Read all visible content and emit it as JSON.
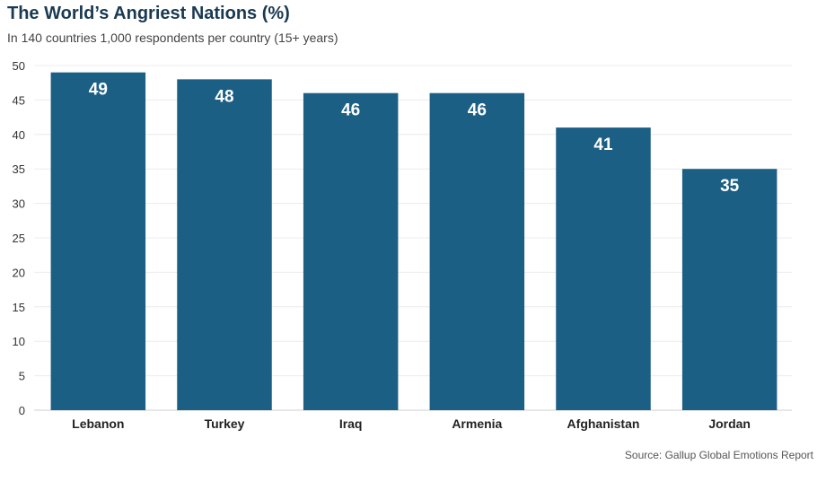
{
  "chart_data": {
    "type": "bar",
    "title": "The World’s Angriest Nations (%)",
    "subtitle": "In 140 countries 1,000 respondents per country (15+ years)",
    "categories": [
      "Lebanon",
      "Turkey",
      "Iraq",
      "Armenia",
      "Afghanistan",
      "Jordan"
    ],
    "values": [
      49,
      48,
      46,
      46,
      41,
      35
    ],
    "data_labels": [
      "49",
      "48",
      "46",
      "46",
      "41",
      "35"
    ],
    "xlabel": "",
    "ylabel": "",
    "ylim": [
      0,
      50
    ],
    "yticks": [
      0,
      5,
      10,
      15,
      20,
      25,
      30,
      35,
      40,
      45,
      50
    ],
    "grid": true,
    "legend": "none",
    "bar_color": "#1c5f85",
    "source": "Source: Gallup Global Emotions Report"
  }
}
